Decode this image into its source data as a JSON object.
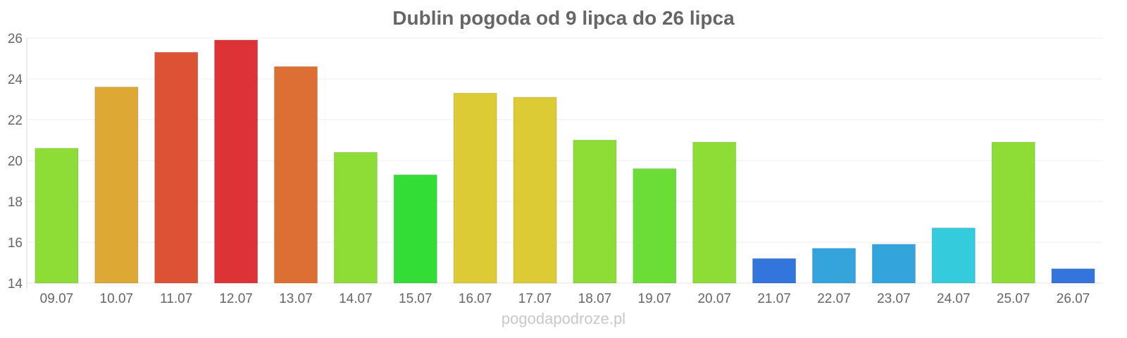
{
  "chart_data": {
    "type": "bar",
    "title": "Dublin pogoda od 9 lipca do 26 lipca",
    "categories": [
      "09.07",
      "10.07",
      "11.07",
      "12.07",
      "13.07",
      "14.07",
      "15.07",
      "16.07",
      "17.07",
      "18.07",
      "19.07",
      "20.07",
      "21.07",
      "22.07",
      "23.07",
      "24.07",
      "25.07",
      "26.07"
    ],
    "values": [
      20.6,
      23.6,
      25.3,
      25.9,
      24.6,
      20.4,
      19.3,
      23.3,
      23.1,
      21.0,
      19.6,
      20.9,
      15.2,
      15.7,
      15.9,
      16.7,
      20.9,
      14.7
    ],
    "colors": [
      "#8ddd36",
      "#dda934",
      "#dd5134",
      "#dd3336",
      "#dd6f34",
      "#8ddd36",
      "#34dd36",
      "#dccb34",
      "#dccb34",
      "#8ddd36",
      "#6cdd36",
      "#8ddd36",
      "#3474dd",
      "#34a4dd",
      "#34a4dd",
      "#34ccdd",
      "#8ddd36",
      "#3474dd"
    ],
    "ylim": [
      14,
      26
    ],
    "yticks": [
      14,
      16,
      18,
      20,
      22,
      24,
      26
    ],
    "grid": true,
    "xlabel": "",
    "ylabel": ""
  },
  "watermark": "pogodapodroze.pl"
}
